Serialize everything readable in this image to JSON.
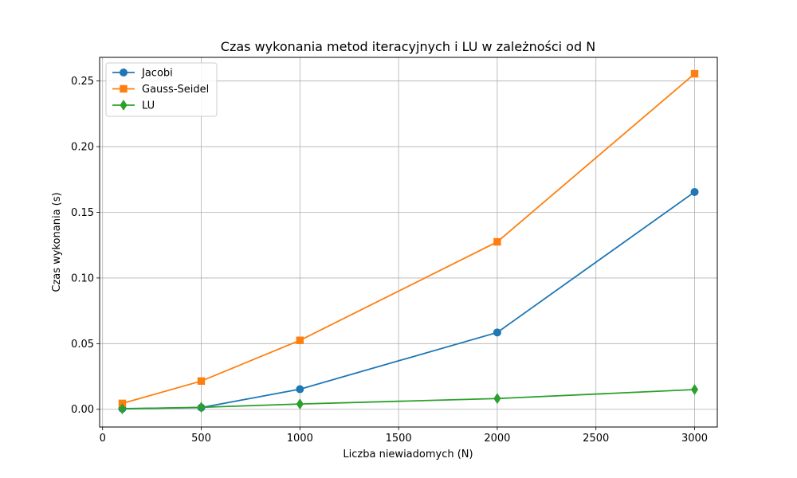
{
  "chart_data": {
    "type": "line",
    "title": "Czas wykonania metod iteracyjnych i LU w zależności od N",
    "xlabel": "Liczba niewiadomych (N)",
    "ylabel": "Czas wykonania (s)",
    "x": [
      100,
      500,
      1000,
      2000,
      3000
    ],
    "xlim": [
      -15,
      3115
    ],
    "ylim": [
      -0.0135,
      0.268
    ],
    "xticks": [
      0,
      500,
      1000,
      1500,
      2000,
      2500,
      3000
    ],
    "xtick_labels": [
      "0",
      "500",
      "1000",
      "1500",
      "2000",
      "2500",
      "3000"
    ],
    "yticks": [
      0.0,
      0.05,
      0.1,
      0.15,
      0.2,
      0.25
    ],
    "ytick_labels": [
      "0.00",
      "0.05",
      "0.10",
      "0.15",
      "0.20",
      "0.25"
    ],
    "grid": true,
    "legend_position": "top-left",
    "series": [
      {
        "name": "Jacobi",
        "color": "#1f77b4",
        "marker": "circle",
        "values": [
          0.0005,
          0.0013,
          0.0153,
          0.0585,
          0.1655
        ]
      },
      {
        "name": "Gauss-Seidel",
        "color": "#ff7f0e",
        "marker": "square",
        "values": [
          0.0045,
          0.0215,
          0.0525,
          0.1275,
          0.2555
        ]
      },
      {
        "name": "LU",
        "color": "#2ca02c",
        "marker": "diamond",
        "values": [
          0.0003,
          0.0015,
          0.004,
          0.0082,
          0.015
        ]
      }
    ]
  }
}
